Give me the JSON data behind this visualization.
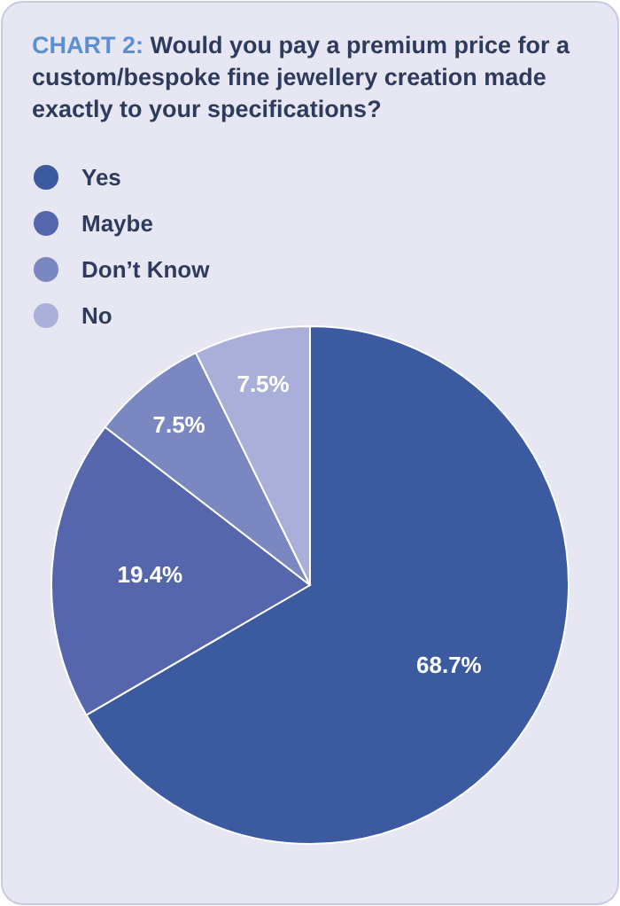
{
  "chart_data": {
    "type": "pie",
    "title": "CHART 2: Would you pay a premium price for a custom/bespoke fine jewellery creation made exactly to your specifications?",
    "categories": [
      "Yes",
      "Maybe",
      "Don’t Know",
      "No"
    ],
    "values": [
      68.7,
      19.4,
      7.5,
      7.5
    ],
    "colors": [
      "#3b5aa0",
      "#5666ad",
      "#7b87c0",
      "#a9afd9"
    ],
    "value_labels": [
      "68.7%",
      "19.4%",
      "7.5%",
      "7.5%"
    ],
    "legend": "top left"
  }
}
